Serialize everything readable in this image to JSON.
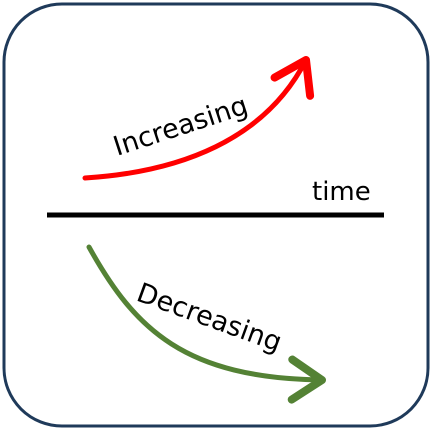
{
  "diagram": {
    "axis_label": "time",
    "increasing": {
      "label": "Increasing",
      "color": "#ff0000"
    },
    "decreasing": {
      "label": "Decreasing",
      "color": "#548235"
    },
    "frame_color": "#1f3a5a",
    "axis_color": "#000000"
  }
}
